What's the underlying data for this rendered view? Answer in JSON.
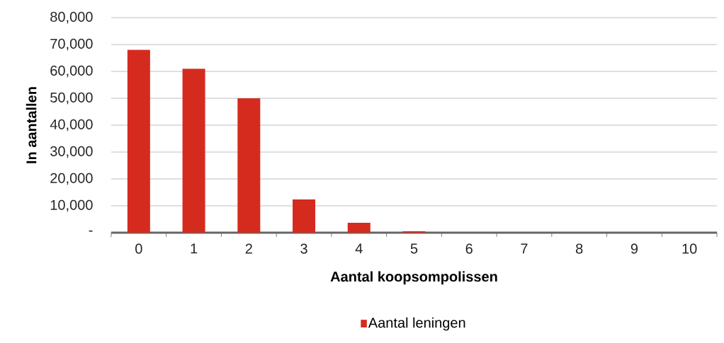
{
  "chart_data": {
    "type": "bar",
    "xlabel": "Aantal koopsompolissen",
    "ylabel": "In aantallen",
    "categories": [
      "0",
      "1",
      "2",
      "3",
      "4",
      "5",
      "6",
      "7",
      "8",
      "9",
      "10"
    ],
    "series": [
      {
        "name": "Aantal leningen",
        "color": "#d52b1e",
        "values": [
          68000,
          61000,
          50000,
          12400,
          3700,
          500,
          0,
          0,
          0,
          0,
          0
        ]
      }
    ],
    "ylim": [
      0,
      80000
    ],
    "yticks": [
      {
        "value": 0,
        "label": "-"
      },
      {
        "value": 10000,
        "label": "10,000"
      },
      {
        "value": 20000,
        "label": "20,000"
      },
      {
        "value": 30000,
        "label": "30,000"
      },
      {
        "value": 40000,
        "label": "40,000"
      },
      {
        "value": 50000,
        "label": "50,000"
      },
      {
        "value": 60000,
        "label": "60,000"
      },
      {
        "value": 70000,
        "label": "70,000"
      },
      {
        "value": 80000,
        "label": "80,000"
      }
    ],
    "grid": "y",
    "legend": "bottom"
  }
}
